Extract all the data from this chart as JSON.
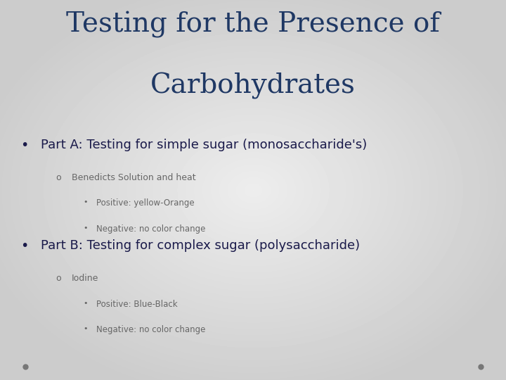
{
  "title_line1": "Testing for the Presence of",
  "title_line2": "Carbohydrates",
  "title_color": "#1F3864",
  "title_fontsize": 28,
  "bg_light": 0.93,
  "bg_dark": 0.8,
  "bullet1": "Part A: Testing for simple sugar (monosaccharide's)",
  "bullet1_color": "#1a1a4a",
  "bullet1_fontsize": 13,
  "sub1_label": "Benedicts Solution and heat",
  "sub1_color": "#666666",
  "sub1_fontsize": 9,
  "sub1_items": [
    "Positive: yellow-Orange",
    "Negative: no color change"
  ],
  "sub1_items_color": "#666666",
  "sub1_items_fontsize": 8.5,
  "bullet2": "Part B: Testing for complex sugar (polysaccharide)",
  "bullet2_color": "#1a1a4a",
  "bullet2_fontsize": 13,
  "sub2_label": "Iodine",
  "sub2_color": "#666666",
  "sub2_fontsize": 9,
  "sub2_items": [
    "Positive: Blue-Black",
    "Negative: no color change"
  ],
  "sub2_items_color": "#666666",
  "sub2_items_fontsize": 8.5,
  "dot_color": "#777777"
}
